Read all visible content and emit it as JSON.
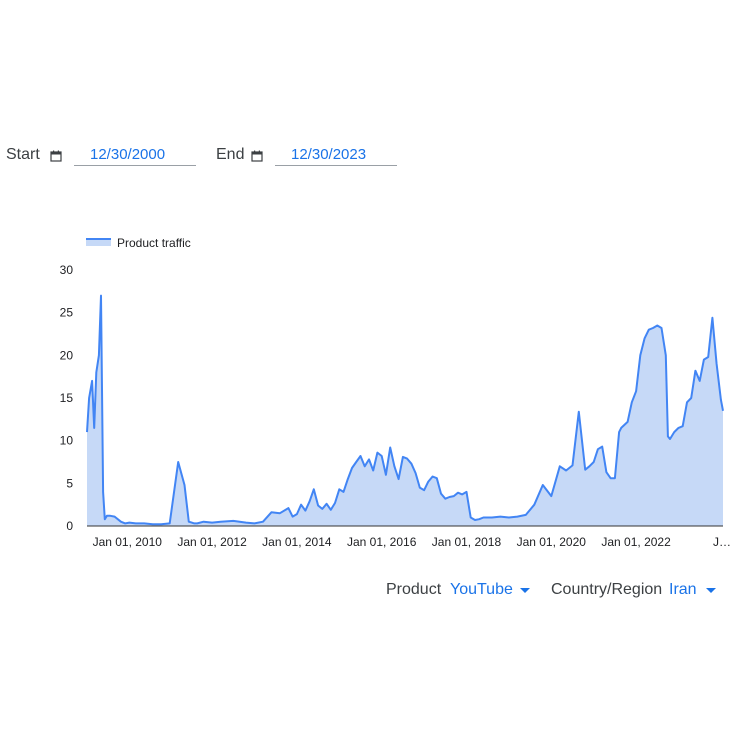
{
  "filters": {
    "start_label": "Start",
    "start_value": "12/30/2000",
    "end_label": "End",
    "end_value": "12/30/2023",
    "product_label": "Product",
    "product_value": "YouTube",
    "region_label": "Country/Region",
    "region_value": "Iran"
  },
  "icons": {
    "calendar": "calendar-icon",
    "dropdown": "caret-down-icon"
  },
  "colors": {
    "accent": "#1a73e8",
    "line": "#4285f4",
    "fill": "#c6d9f7"
  },
  "chart_data": {
    "type": "area",
    "legend": {
      "label": "Product traffic",
      "position": "top-left"
    },
    "ylim": [
      0,
      30
    ],
    "yticks": [
      0,
      5,
      10,
      15,
      20,
      25,
      30
    ],
    "xlim": [
      2009.05,
      2024.05
    ],
    "xtick_values": [
      2010,
      2012,
      2014,
      2016,
      2018,
      2020,
      2022,
      2024
    ],
    "xtick_labels": [
      "Jan 01, 2010",
      "Jan 01, 2012",
      "Jan 01, 2014",
      "Jan 01, 2016",
      "Jan 01, 2018",
      "Jan 01, 2020",
      "Jan 01, 2022",
      "J…"
    ],
    "grid": false,
    "series": [
      {
        "name": "Product traffic",
        "x": [
          2009.05,
          2009.1,
          2009.17,
          2009.22,
          2009.27,
          2009.33,
          2009.38,
          2009.43,
          2009.47,
          2009.52,
          2009.6,
          2009.7,
          2009.85,
          2009.95,
          2010.05,
          2010.2,
          2010.4,
          2010.6,
          2010.8,
          2011.0,
          2011.2,
          2011.35,
          2011.45,
          2011.52,
          2011.58,
          2011.65,
          2011.8,
          2012.0,
          2012.2,
          2012.5,
          2012.8,
          2013.0,
          2013.2,
          2013.4,
          2013.6,
          2013.8,
          2013.9,
          2014.0,
          2014.1,
          2014.2,
          2014.3,
          2014.4,
          2014.5,
          2014.6,
          2014.7,
          2014.8,
          2014.9,
          2015.0,
          2015.1,
          2015.2,
          2015.3,
          2015.4,
          2015.5,
          2015.6,
          2015.7,
          2015.8,
          2015.9,
          2016.0,
          2016.1,
          2016.2,
          2016.3,
          2016.4,
          2016.5,
          2016.6,
          2016.7,
          2016.8,
          2016.9,
          2017.0,
          2017.1,
          2017.2,
          2017.3,
          2017.4,
          2017.5,
          2017.6,
          2017.7,
          2017.8,
          2017.9,
          2018.0,
          2018.1,
          2018.2,
          2018.3,
          2018.4,
          2018.6,
          2018.8,
          2019.0,
          2019.2,
          2019.4,
          2019.6,
          2019.8,
          2020.0,
          2020.2,
          2020.35,
          2020.5,
          2020.65,
          2020.8,
          2020.9,
          2021.0,
          2021.1,
          2021.2,
          2021.3,
          2021.4,
          2021.5,
          2021.6,
          2021.65,
          2021.8,
          2021.9,
          2022.0,
          2022.1,
          2022.2,
          2022.3,
          2022.4,
          2022.5,
          2022.6,
          2022.7,
          2022.75,
          2022.8,
          2022.9,
          2023.0,
          2023.1,
          2023.2,
          2023.3,
          2023.4,
          2023.5,
          2023.6,
          2023.7,
          2023.8,
          2023.9,
          2024.0,
          2024.05
        ],
        "values": [
          11,
          15,
          17,
          11.5,
          18,
          20,
          27,
          4,
          0.8,
          1.2,
          1.2,
          1.1,
          0.5,
          0.3,
          0.4,
          0.3,
          0.3,
          0.2,
          0.2,
          0.3,
          7.5,
          4.8,
          0.5,
          0.4,
          0.3,
          0.3,
          0.5,
          0.4,
          0.5,
          0.6,
          0.4,
          0.3,
          0.5,
          1.6,
          1.5,
          2.1,
          1.1,
          1.4,
          2.5,
          1.8,
          2.9,
          4.3,
          2.4,
          2.0,
          2.6,
          1.9,
          2.7,
          4.3,
          4.0,
          5.5,
          6.8,
          7.5,
          8.2,
          7.0,
          7.8,
          6.5,
          8.6,
          8.2,
          6.0,
          9.2,
          7.0,
          5.5,
          8.1,
          7.9,
          7.3,
          6.2,
          4.5,
          4.2,
          5.2,
          5.8,
          5.6,
          3.8,
          3.2,
          3.4,
          3.5,
          3.9,
          3.7,
          4.0,
          1.0,
          0.7,
          0.8,
          1.0,
          1.0,
          1.1,
          1.0,
          1.1,
          1.3,
          2.5,
          4.8,
          3.5,
          7.0,
          6.5,
          7.1,
          13.4,
          6.6,
          7.0,
          7.5,
          9.0,
          9.3,
          6.3,
          5.6,
          5.6,
          11.0,
          11.5,
          12.2,
          14.5,
          15.8,
          20.0,
          22.0,
          23.0,
          23.2,
          23.5,
          23.2,
          20.0,
          10.5,
          10.2,
          11.0,
          11.5,
          11.7,
          14.5,
          15.0,
          18.2,
          17.0,
          19.5,
          19.8,
          24.4,
          19.0,
          14.8,
          13.5
        ]
      }
    ]
  }
}
